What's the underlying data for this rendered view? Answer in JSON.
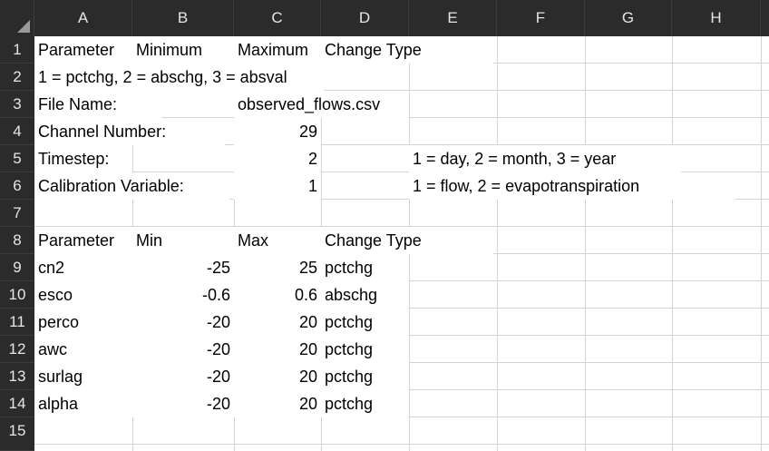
{
  "columns": [
    "A",
    "B",
    "C",
    "D",
    "E",
    "F",
    "G",
    "H"
  ],
  "rows": [
    "1",
    "2",
    "3",
    "4",
    "5",
    "6",
    "7",
    "8",
    "9",
    "10",
    "11",
    "12",
    "13",
    "14",
    "15"
  ],
  "cells": {
    "A1": "Parameter",
    "B1": "Minimum",
    "C1": "Maximum",
    "D1": "Change Type",
    "A2": "1 = pctchg, 2 = abschg, 3 = absval",
    "A3": "File Name:",
    "C3": "observed_flows.csv",
    "A4": "Channel Number:",
    "C4": "29",
    "A5": "Timestep:",
    "C5": "2",
    "E5": "1 = day, 2 = month, 3 = year",
    "A6": "Calibration Variable:",
    "C6": "1",
    "E6": "1 = flow, 2 = evapotranspiration",
    "A8": "Parameter",
    "B8": "Min",
    "C8": "Max",
    "D8": "Change Type",
    "A9": "cn2",
    "B9": "-25",
    "C9": "25",
    "D9": "pctchg",
    "A10": "esco",
    "B10": "-0.6",
    "C10": "0.6",
    "D10": "abschg",
    "A11": "perco",
    "B11": "-20",
    "C11": "20",
    "D11": "pctchg",
    "A12": "awc",
    "B12": "-20",
    "C12": "20",
    "D12": "pctchg",
    "A13": "surlag",
    "B13": "-20",
    "C13": "20",
    "D13": "pctchg",
    "A14": "alpha",
    "B14": "-20",
    "C14": "20",
    "D14": "pctchg"
  }
}
